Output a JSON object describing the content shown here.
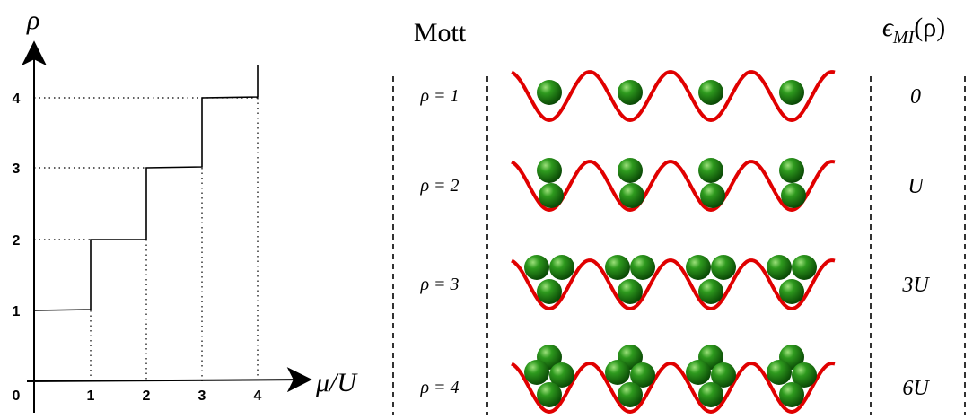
{
  "plot": {
    "y_label": "ρ",
    "x_label": "μ/U",
    "x_ticks": [
      "0",
      "1",
      "2",
      "3",
      "4"
    ],
    "y_ticks": [
      "1",
      "2",
      "3",
      "4"
    ]
  },
  "header": {
    "mott": "Mott",
    "energy_symbol": "ϵ",
    "energy_subscript": "MI",
    "energy_argument": "(ρ)"
  },
  "rows": [
    {
      "density": "ρ = 1",
      "energy": "0"
    },
    {
      "density": "ρ = 2",
      "energy": "U"
    },
    {
      "density": "ρ = 3",
      "energy": "3U"
    },
    {
      "density": "ρ = 4",
      "energy": "6U"
    }
  ]
}
